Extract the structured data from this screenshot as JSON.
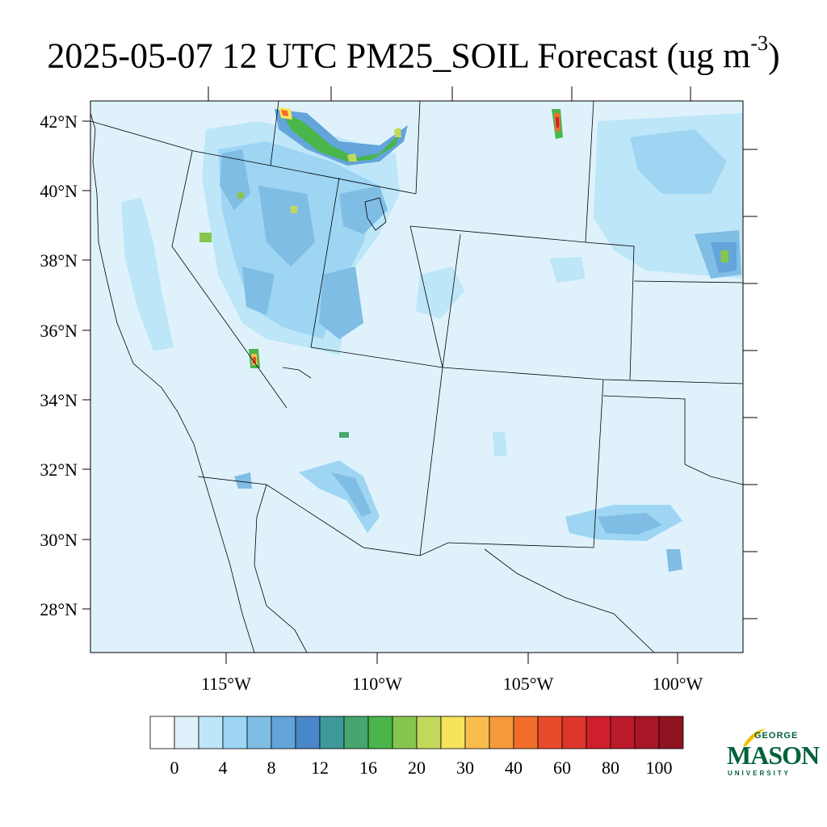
{
  "title": {
    "main": "2025-05-07 12 UTC PM25_SOIL Forecast (ug m",
    "exponent": "-3",
    "close": ")"
  },
  "map": {
    "lat_labels": [
      "42°N",
      "40°N",
      "38°N",
      "36°N",
      "34°N",
      "32°N",
      "30°N",
      "28°N"
    ],
    "lon_labels": [
      "115°W",
      "110°W",
      "105°W",
      "100°W"
    ],
    "background_color": "#dff2fc"
  },
  "colorbar": {
    "labels": [
      "0",
      "4",
      "8",
      "12",
      "16",
      "20",
      "30",
      "40",
      "60",
      "80",
      "100"
    ],
    "colors": [
      "#ffffff",
      "#dff2fc",
      "#bde6f8",
      "#9dd5f3",
      "#7fbde5",
      "#63a4db",
      "#4a87c8",
      "#3e9a9a",
      "#47a66e",
      "#49b54a",
      "#86c64e",
      "#c2d85a",
      "#f7e35c",
      "#f8bd4c",
      "#f59a3c",
      "#f26d2c",
      "#e84a2c",
      "#dd3729",
      "#cf1f2d",
      "#bb1a2a",
      "#a81628",
      "#8f1420"
    ]
  },
  "logo": {
    "line1": "GEORGE",
    "line2": "MASON",
    "line3": "UNIVERSITY"
  }
}
